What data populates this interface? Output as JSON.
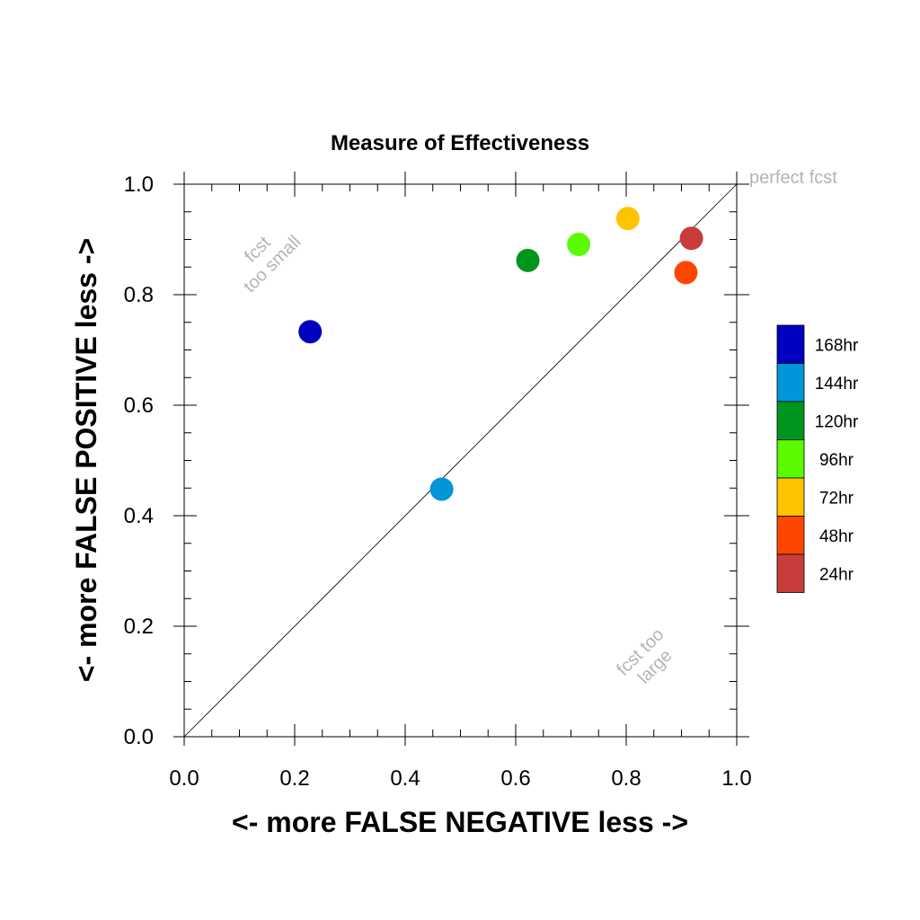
{
  "chart_data": {
    "type": "scatter",
    "title": "Measure of Effectiveness",
    "xlabel": "<- more   FALSE NEGATIVE   less ->",
    "ylabel": "<- more   FALSE POSITIVE   less ->",
    "xlim": [
      0,
      1
    ],
    "ylim": [
      0,
      1
    ],
    "x_ticks": [
      "0.0",
      "0.2",
      "0.4",
      "0.6",
      "0.8",
      "1.0"
    ],
    "y_ticks": [
      "0.0",
      "0.2",
      "0.4",
      "0.6",
      "0.8",
      "1.0"
    ],
    "grid": false,
    "diagonal_line": true,
    "annotations": {
      "perfect": "perfect fcst",
      "too_small": [
        "fcst",
        "too small"
      ],
      "too_large": [
        "fcst too",
        "large"
      ]
    },
    "legend_position": "right",
    "series": [
      {
        "name": "168hr",
        "color": "#0000c0",
        "x": 0.228,
        "y": 0.733
      },
      {
        "name": "144hr",
        "color": "#0096d9",
        "x": 0.466,
        "y": 0.448
      },
      {
        "name": "120hr",
        "color": "#00961e",
        "x": 0.622,
        "y": 0.862
      },
      {
        "name": "96hr",
        "color": "#5afa00",
        "x": 0.714,
        "y": 0.891
      },
      {
        "name": "72hr",
        "color": "#ffc300",
        "x": 0.803,
        "y": 0.938
      },
      {
        "name": "48hr",
        "color": "#ff4600",
        "x": 0.908,
        "y": 0.84
      },
      {
        "name": "24hr",
        "color": "#c83c3c",
        "x": 0.918,
        "y": 0.902
      }
    ]
  }
}
